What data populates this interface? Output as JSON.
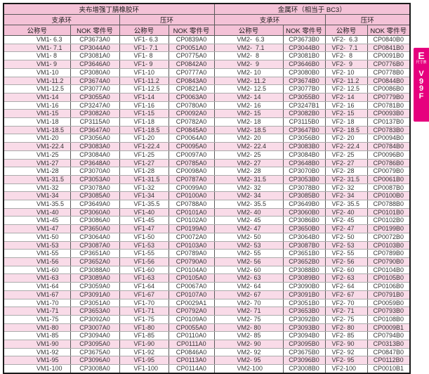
{
  "table": {
    "group_headers": [
      "夹布增强丁腈橡胶环",
      "金属环（相当于 BC3）"
    ],
    "sub_headers": [
      "支承环",
      "压环",
      "支承环",
      "压环"
    ],
    "col_headers": [
      "公称号",
      "NOK 零件号",
      "公称号",
      "NOK 零件号",
      "公称号",
      "NOK 零件号",
      "公称号",
      "NOK 零件号"
    ],
    "rows": [
      [
        "VM1- 6.3",
        "CP3673A0",
        "VF1- 6.3",
        "CP0839A0",
        "VM2-  6.3",
        "CP3673B0",
        "VF2-  6.3",
        "CP0840B0"
      ],
      [
        "VM1- 7.1",
        "CP3044A0",
        "VF1- 7.1",
        "CP0051A0",
        "VM2-  7.1",
        "CP3044B0",
        "VF2-  7.1",
        "CP0841B0"
      ],
      [
        "VM1- 8",
        "CP3081A0",
        "VF1- 8",
        "CP0775A0",
        "VM2-  8",
        "CP3081B0",
        "VF2-  8",
        "CP0091B0"
      ],
      [
        "VM1- 9",
        "CP3646A0",
        "VF1- 9",
        "CP0842A0",
        "VM2-  9",
        "CP3646B0",
        "VF2-  9",
        "CP0776B0"
      ],
      [
        "VM1-10",
        "CP3080A0",
        "VF1-10",
        "CP0777A0",
        "VM2- 10",
        "CP3080B0",
        "VF2- 10",
        "CP0778B0"
      ],
      [
        "VM1-11.2",
        "CP3674A0",
        "VF1-11.2",
        "CP0843A0",
        "VM2- 11.2",
        "CP3674B0",
        "VF2- 11.2",
        "CP0844B0"
      ],
      [
        "VM1-12.5",
        "CP3077A0",
        "VF1-12.5",
        "CP0821A0",
        "VM2- 12.5",
        "CP3077B0",
        "VF2- 12.5",
        "CP0086B0"
      ],
      [
        "VM1-14",
        "CP3055A0",
        "VF1-14",
        "CP0063A0",
        "VM2- 14",
        "CP3055B0",
        "VF2- 14",
        "CP0779B0"
      ],
      [
        "VM1-16",
        "CP3247A0",
        "VF1-16",
        "CP0780A0",
        "VM2- 16",
        "CP3247B1",
        "VF2- 16",
        "CP0781B0"
      ],
      [
        "VM1-15",
        "CP3082A0",
        "VF1-15",
        "CP0092A0",
        "VM2- 15",
        "CP3082B0",
        "VF2- 15",
        "CP0093B0"
      ],
      [
        "VM1-18",
        "CP3115A0",
        "VF1-18",
        "CP0782A0",
        "VM2- 18",
        "CP3115B0",
        "VF2- 18",
        "CP0137B0"
      ],
      [
        "VM1-18.5",
        "CP3647A0",
        "VF1-18.5",
        "CP0845A0",
        "VM2- 18.5",
        "CP3647B0",
        "VF2- 18.5",
        "CP0783B0"
      ],
      [
        "VM1-20",
        "CP3056A0",
        "VF1-20",
        "CP0064A0",
        "VM2- 20",
        "CP3056B0",
        "VF2- 20",
        "CP0094B0"
      ],
      [
        "VM1-22.4",
        "CP3083A0",
        "VF1-22.4",
        "CP0095A0",
        "VM2- 22.4",
        "CP3083B0",
        "VF2- 22.4",
        "CP0784B0"
      ],
      [
        "VM1-25",
        "CP3084A0",
        "VF1-25",
        "CP0097A0",
        "VM2- 25",
        "CP3084B0",
        "VF2- 25",
        "CP0096B0"
      ],
      [
        "VM1-27",
        "CP3648A0",
        "VF1-27",
        "CP0785A0",
        "VM2- 27",
        "CP3648B0",
        "VF2- 27",
        "CP0786B0"
      ],
      [
        "VM1-28",
        "CP3070A0",
        "VF1-28",
        "CP0098A0",
        "VM2- 28",
        "CP3070B0",
        "VF2- 28",
        "CP0079B0"
      ],
      [
        "VM1-31.5",
        "CP3053A0",
        "VF1-31.5",
        "CP0787A0",
        "VM2- 31.5",
        "CP3053B0",
        "VF2- 31.5",
        "CP0061B0"
      ],
      [
        "VM1-32",
        "CP3078A0",
        "VF1-32",
        "CP0099A0",
        "VM2- 32",
        "CP3078B0",
        "VF2- 32",
        "CP0087B0"
      ],
      [
        "VM1-34",
        "CP3085A0",
        "VF1-34",
        "CP0100A0",
        "VM2- 34",
        "CP3085B0",
        "VF2- 34",
        "CP0100B0"
      ],
      [
        "VM1-35.5",
        "CP3649A0",
        "VF1-35.5",
        "CP0788A0",
        "VM2- 35.5",
        "CP3649B0",
        "VF2- 35.5",
        "CP0788B0"
      ],
      [
        "VM1-40",
        "CP3060A0",
        "VF1-40",
        "CP0101A0",
        "VM2- 40",
        "CP3060B0",
        "VF2- 40",
        "CP0101B0"
      ],
      [
        "VM1-45",
        "CP3086A0",
        "VF1-45",
        "CP0102A0",
        "VM2- 45",
        "CP3086B0",
        "VF2- 45",
        "CP0102B0"
      ],
      [
        "VM1-47",
        "CP3650A0",
        "VF1-47",
        "CP0199A0",
        "VM2- 47",
        "CP3650B0",
        "VF2- 47",
        "CP0199B0"
      ],
      [
        "VM1-50",
        "CP3064A0",
        "VF1-50",
        "CP0072A0",
        "VM2- 50",
        "CP3064B0",
        "VF2- 50",
        "CP0072B0"
      ],
      [
        "VM1-53",
        "CP3087A0",
        "VF1-53",
        "CP0103A0",
        "VM2- 53",
        "CP3087B0",
        "VF2- 53",
        "CP0103B0"
      ],
      [
        "VM1-55",
        "CP3651A0",
        "VF1-55",
        "CP0789A0",
        "VM2- 55",
        "CP3651B0",
        "VF2- 55",
        "CP0789B0"
      ],
      [
        "VM1-56",
        "CP3652A0",
        "VF1-56",
        "CP0790A0",
        "VM2- 56",
        "CP3652B0",
        "VF2- 56",
        "CP0790B0"
      ],
      [
        "VM1-60",
        "CP3088A0",
        "VF1-60",
        "CP0104A0",
        "VM2- 60",
        "CP3088B0",
        "VF2- 60",
        "CP0104B0"
      ],
      [
        "VM1-63",
        "CP3089A0",
        "VF1-63",
        "CP0105A0",
        "VM2- 63",
        "CP3089B0",
        "VF2- 63",
        "CP0105B0"
      ],
      [
        "VM1-64",
        "CP3059A0",
        "VF1-64",
        "CP0067A0",
        "VM2- 64",
        "CP3090B0",
        "VF2- 64",
        "CP0106B0"
      ],
      [
        "VM1-67",
        "CP3091A0",
        "VF1-67",
        "CP0107A0",
        "VM2- 67",
        "CP3091B0",
        "VF2- 67",
        "CP0791B0"
      ],
      [
        "VM1-70",
        "CP3051A0",
        "VF1-70",
        "CP0029A1",
        "VM2- 70",
        "CP3051B0",
        "VF2- 70",
        "CP0059B0"
      ],
      [
        "VM1-71",
        "CP3653A0",
        "VF1-71",
        "CP0792A0",
        "VM2- 71",
        "CP3653B0",
        "VF2- 71",
        "CP0793B0"
      ],
      [
        "VM1-75",
        "CP3092A0",
        "VF1-75",
        "CP0109A0",
        "VM2- 75",
        "CP3092B0",
        "VF2- 75",
        "CP0108B0"
      ],
      [
        "VM1-80",
        "CP3007A0",
        "VF1-80",
        "CP0055A0",
        "VM2- 80",
        "CP3093B0",
        "VF2- 80",
        "CP0009B1"
      ],
      [
        "VM1-85",
        "CP3094A0",
        "VF1-85",
        "CP0110A0",
        "VM2- 85",
        "CP3094B0",
        "VF2- 85",
        "CP0794B0"
      ],
      [
        "VM1-90",
        "CP3095A0",
        "VF1-90",
        "CP0111A0",
        "VM2- 90",
        "CP3095B0",
        "VF2- 90",
        "CP0313B0"
      ],
      [
        "VM1-92",
        "CP3675A0",
        "VF1-92",
        "CP0846A0",
        "VM2- 92",
        "CP3675B0",
        "VF2- 92",
        "CP0847B0"
      ],
      [
        "VM1-95",
        "CP3096A0",
        "VF1-95",
        "CP0113A0",
        "VM2- 95",
        "CP3096B0",
        "VF2- 95",
        "CP0112B0"
      ],
      [
        "VM1-100",
        "CP3008A0",
        "VF1-100",
        "CP0114A0",
        "VM2-100",
        "CP3008B0",
        "VF2-100",
        "CP0010B1"
      ]
    ]
  },
  "tab": {
    "section_letter": "E",
    "sublabel": "尺寸表",
    "code": "V99F"
  },
  "colors": {
    "header_pink": "#f4c2d7",
    "row_pink": "#f9dbe8",
    "tab_magenta": "#e6007e"
  }
}
